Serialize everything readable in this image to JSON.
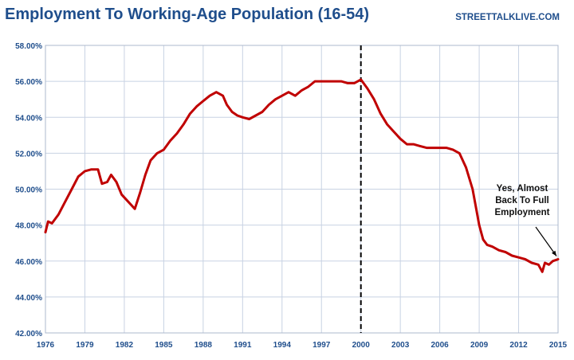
{
  "chart_data": {
    "type": "line",
    "title": "Employment To Working-Age Population (16-54)",
    "source": "STREETTALKLIVE.COM",
    "xlabel": "",
    "ylabel": "",
    "xlim": [
      1976,
      2015
    ],
    "ylim": [
      42,
      58
    ],
    "x_tick_labels": [
      "1976",
      "1979",
      "1982",
      "1985",
      "1988",
      "1991",
      "1994",
      "1997",
      "2000",
      "2003",
      "2006",
      "2009",
      "2012",
      "2015"
    ],
    "y_tick_labels": [
      "42.00%",
      "44.00%",
      "46.00%",
      "48.00%",
      "50.00%",
      "52.00%",
      "54.00%",
      "56.00%",
      "58.00%"
    ],
    "grid": true,
    "reference_line": {
      "x": 2000,
      "style": "dashed"
    },
    "annotation": {
      "lines": [
        "Yes, Almost",
        "Back To Full",
        "Employment"
      ],
      "points_to": {
        "x": 2015,
        "y": 46.1
      }
    },
    "colors": {
      "line": "#c00000",
      "title": "#1f4e8c",
      "grid": "#c8d2e3",
      "reference_line": "#000000"
    },
    "series": [
      {
        "x": [
          1976.0,
          1976.2,
          1976.5,
          1977.0,
          1977.5,
          1978.0,
          1978.5,
          1979.0,
          1979.5,
          1980.0,
          1980.3,
          1980.7,
          1981.0,
          1981.4,
          1981.8,
          1982.3,
          1982.8,
          1983.2,
          1983.6,
          1984.0,
          1984.5,
          1985.0,
          1985.5,
          1986.0,
          1986.5,
          1987.0,
          1987.5,
          1988.0,
          1988.5,
          1989.0,
          1989.5,
          1989.8,
          1990.2,
          1990.6,
          1991.0,
          1991.5,
          1992.0,
          1992.5,
          1993.0,
          1993.5,
          1994.0,
          1994.5,
          1995.0,
          1995.5,
          1996.0,
          1996.5,
          1997.0,
          1997.5,
          1998.0,
          1998.5,
          1999.0,
          1999.5,
          2000.0,
          2000.5,
          2001.0,
          2001.5,
          2002.0,
          2002.5,
          2003.0,
          2003.5,
          2004.0,
          2004.5,
          2005.0,
          2005.5,
          2006.0,
          2006.5,
          2007.0,
          2007.5,
          2008.0,
          2008.5,
          2009.0,
          2009.3,
          2009.6,
          2010.0,
          2010.5,
          2011.0,
          2011.5,
          2012.0,
          2012.5,
          2013.0,
          2013.5,
          2013.8,
          2014.0,
          2014.3,
          2014.6,
          2015.0
        ],
        "values": [
          47.6,
          48.2,
          48.1,
          48.6,
          49.3,
          50.0,
          50.7,
          51.0,
          51.1,
          51.1,
          50.3,
          50.4,
          50.8,
          50.4,
          49.7,
          49.3,
          48.9,
          49.8,
          50.8,
          51.6,
          52.0,
          52.2,
          52.7,
          53.1,
          53.6,
          54.2,
          54.6,
          54.9,
          55.2,
          55.4,
          55.2,
          54.7,
          54.3,
          54.1,
          54.0,
          53.9,
          54.1,
          54.3,
          54.7,
          55.0,
          55.2,
          55.4,
          55.2,
          55.5,
          55.7,
          56.0,
          56.0,
          56.0,
          56.0,
          56.0,
          55.9,
          55.9,
          56.1,
          55.6,
          55.0,
          54.2,
          53.6,
          53.2,
          52.8,
          52.5,
          52.5,
          52.4,
          52.3,
          52.3,
          52.3,
          52.3,
          52.2,
          52.0,
          51.2,
          50.0,
          48.0,
          47.2,
          46.9,
          46.8,
          46.6,
          46.5,
          46.3,
          46.2,
          46.1,
          45.9,
          45.8,
          45.4,
          45.9,
          45.8,
          46.0,
          46.1
        ]
      }
    ]
  }
}
